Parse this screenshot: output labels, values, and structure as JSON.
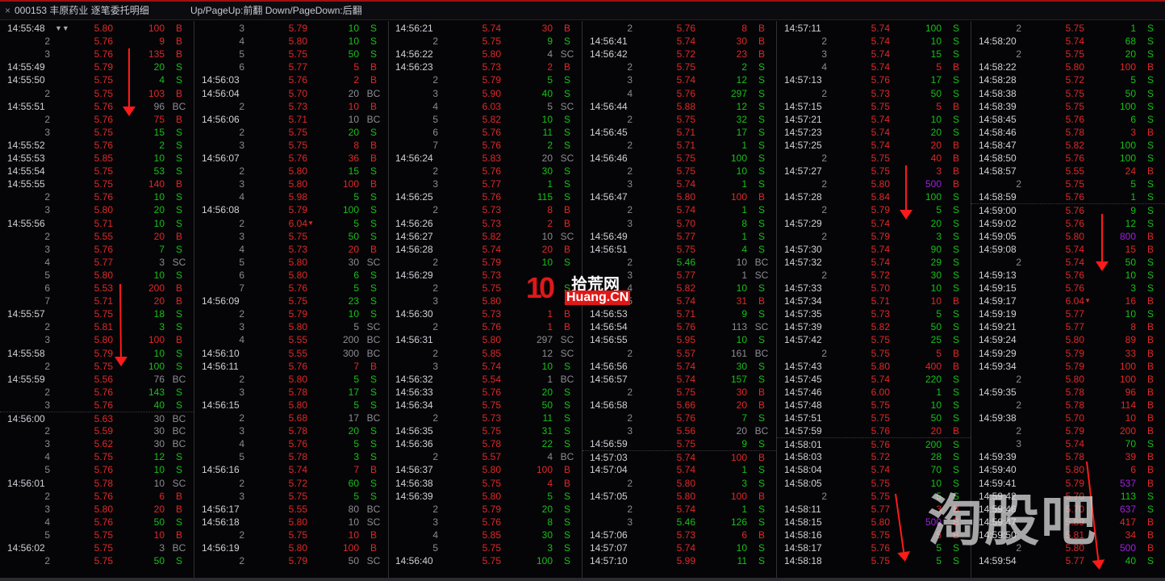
{
  "header": {
    "close_label": "×",
    "title": "000153 丰原药业 逐笔委托明细",
    "hint": "Up/PageUp:前翻 Down/PageDown:后翻",
    "filter_icons": "▼▼"
  },
  "colors": {
    "up": "#e02828",
    "down": "#18c018",
    "cancel": "#8c8c94",
    "large": "#a020e0"
  },
  "watermarks": {
    "logo1_num": "10",
    "logo1_cn": "拾荒网",
    "logo1_en": "Huang.CN",
    "logo2": "淘股吧"
  },
  "columns": [
    [
      [
        "14:55:48",
        "5.80",
        "100",
        "B"
      ],
      [
        "2",
        "5.76",
        "9",
        "B"
      ],
      [
        "3",
        "5.76",
        "135",
        "B"
      ],
      [
        "14:55:49",
        "5.79",
        "20",
        "S"
      ],
      [
        "14:55:50",
        "5.75",
        "4",
        "S"
      ],
      [
        "2",
        "5.75",
        "103",
        "B"
      ],
      [
        "14:55:51",
        "5.76",
        "96",
        "BC"
      ],
      [
        "2",
        "5.76",
        "75",
        "B"
      ],
      [
        "3",
        "5.75",
        "15",
        "S"
      ],
      [
        "14:55:52",
        "5.76",
        "2",
        "S"
      ],
      [
        "14:55:53",
        "5.85",
        "10",
        "S"
      ],
      [
        "14:55:54",
        "5.75",
        "53",
        "S"
      ],
      [
        "14:55:55",
        "5.75",
        "140",
        "B"
      ],
      [
        "2",
        "5.76",
        "10",
        "S"
      ],
      [
        "3",
        "5.80",
        "20",
        "S"
      ],
      [
        "14:55:56",
        "5.71",
        "10",
        "S"
      ],
      [
        "2",
        "5.55",
        "20",
        "B"
      ],
      [
        "3",
        "5.76",
        "7",
        "S"
      ],
      [
        "4",
        "5.77",
        "3",
        "SC"
      ],
      [
        "5",
        "5.80",
        "10",
        "S"
      ],
      [
        "6",
        "5.53",
        "200",
        "B"
      ],
      [
        "7",
        "5.71",
        "20",
        "B"
      ],
      [
        "14:55:57",
        "5.75",
        "18",
        "S"
      ],
      [
        "2",
        "5.81",
        "3",
        "S"
      ],
      [
        "3",
        "5.80",
        "100",
        "B"
      ],
      [
        "14:55:58",
        "5.79",
        "10",
        "S"
      ],
      [
        "2",
        "5.75",
        "100",
        "S"
      ],
      [
        "14:55:59",
        "5.56",
        "76",
        "BC"
      ],
      [
        "2",
        "5.76",
        "143",
        "S"
      ],
      [
        "3",
        "5.76",
        "40",
        "S"
      ],
      [
        "14:56:00",
        "5.63",
        "30",
        "BC"
      ],
      [
        "2",
        "5.59",
        "30",
        "BC"
      ],
      [
        "3",
        "5.62",
        "30",
        "BC"
      ],
      [
        "4",
        "5.75",
        "12",
        "S"
      ],
      [
        "5",
        "5.76",
        "10",
        "S"
      ],
      [
        "14:56:01",
        "5.78",
        "10",
        "SC"
      ],
      [
        "2",
        "5.76",
        "6",
        "B"
      ],
      [
        "3",
        "5.80",
        "20",
        "B"
      ],
      [
        "4",
        "5.76",
        "50",
        "S"
      ],
      [
        "5",
        "5.75",
        "10",
        "B"
      ],
      [
        "14:56:02",
        "5.75",
        "3",
        "BC"
      ],
      [
        "2",
        "5.75",
        "50",
        "S"
      ]
    ],
    [
      [
        "3",
        "5.79",
        "10",
        "S"
      ],
      [
        "4",
        "5.80",
        "10",
        "S"
      ],
      [
        "5",
        "5.75",
        "50",
        "S"
      ],
      [
        "6",
        "5.77",
        "5",
        "B"
      ],
      [
        "14:56:03",
        "5.76",
        "2",
        "B"
      ],
      [
        "14:56:04",
        "5.70",
        "20",
        "BC"
      ],
      [
        "2",
        "5.73",
        "10",
        "B"
      ],
      [
        "14:56:06",
        "5.71",
        "10",
        "BC"
      ],
      [
        "2",
        "5.75",
        "20",
        "S"
      ],
      [
        "3",
        "5.75",
        "8",
        "B"
      ],
      [
        "14:56:07",
        "5.76",
        "36",
        "B"
      ],
      [
        "2",
        "5.80",
        "15",
        "S"
      ],
      [
        "3",
        "5.80",
        "100",
        "B"
      ],
      [
        "4",
        "5.98",
        "5",
        "S"
      ],
      [
        "14:56:08",
        "5.79",
        "100",
        "S"
      ],
      [
        "2",
        "6.04",
        "5",
        "S"
      ],
      [
        "3",
        "5.75",
        "50",
        "S"
      ],
      [
        "4",
        "5.73",
        "20",
        "B"
      ],
      [
        "5",
        "5.80",
        "30",
        "SC"
      ],
      [
        "6",
        "5.80",
        "6",
        "S"
      ],
      [
        "7",
        "5.76",
        "5",
        "S"
      ],
      [
        "14:56:09",
        "5.75",
        "23",
        "S"
      ],
      [
        "2",
        "5.79",
        "10",
        "S"
      ],
      [
        "3",
        "5.80",
        "5",
        "SC"
      ],
      [
        "4",
        "5.55",
        "200",
        "BC"
      ],
      [
        "14:56:10",
        "5.55",
        "300",
        "BC"
      ],
      [
        "14:56:11",
        "5.76",
        "7",
        "B"
      ],
      [
        "2",
        "5.80",
        "5",
        "S"
      ],
      [
        "3",
        "5.78",
        "17",
        "S"
      ],
      [
        "14:56:15",
        "5.80",
        "5",
        "S"
      ],
      [
        "2",
        "5.68",
        "17",
        "BC"
      ],
      [
        "3",
        "5.78",
        "20",
        "S"
      ],
      [
        "4",
        "5.76",
        "5",
        "S"
      ],
      [
        "5",
        "5.78",
        "3",
        "S"
      ],
      [
        "14:56:16",
        "5.74",
        "7",
        "B"
      ],
      [
        "2",
        "5.72",
        "60",
        "S"
      ],
      [
        "3",
        "5.75",
        "5",
        "S"
      ],
      [
        "14:56:17",
        "5.55",
        "80",
        "BC"
      ],
      [
        "14:56:18",
        "5.80",
        "10",
        "SC"
      ],
      [
        "2",
        "5.75",
        "10",
        "B"
      ],
      [
        "14:56:19",
        "5.80",
        "100",
        "B"
      ],
      [
        "2",
        "5.79",
        "50",
        "SC"
      ]
    ],
    [
      [
        "14:56:21",
        "5.74",
        "30",
        "B"
      ],
      [
        "2",
        "5.75",
        "9",
        "S"
      ],
      [
        "14:56:22",
        "5.80",
        "4",
        "SC"
      ],
      [
        "14:56:23",
        "5.73",
        "2",
        "B"
      ],
      [
        "2",
        "5.79",
        "5",
        "S"
      ],
      [
        "3",
        "5.90",
        "40",
        "S"
      ],
      [
        "4",
        "6.03",
        "5",
        "SC"
      ],
      [
        "5",
        "5.82",
        "10",
        "S"
      ],
      [
        "6",
        "5.76",
        "11",
        "S"
      ],
      [
        "7",
        "5.76",
        "2",
        "S"
      ],
      [
        "14:56:24",
        "5.83",
        "20",
        "SC"
      ],
      [
        "2",
        "5.76",
        "30",
        "S"
      ],
      [
        "3",
        "5.77",
        "1",
        "S"
      ],
      [
        "14:56:25",
        "5.76",
        "115",
        "S"
      ],
      [
        "2",
        "5.73",
        "8",
        "B"
      ],
      [
        "14:56:26",
        "5.73",
        "2",
        "B"
      ],
      [
        "14:56:27",
        "5.82",
        "10",
        "SC"
      ],
      [
        "14:56:28",
        "5.74",
        "20",
        "B"
      ],
      [
        "2",
        "5.79",
        "10",
        "S"
      ],
      [
        "14:56:29",
        "5.73",
        "",
        ""
      ],
      [
        "2",
        "5.75",
        "",
        "S"
      ],
      [
        "3",
        "5.80",
        "",
        "S"
      ],
      [
        "14:56:30",
        "5.73",
        "1",
        "B"
      ],
      [
        "2",
        "5.76",
        "1",
        "B"
      ],
      [
        "14:56:31",
        "5.80",
        "297",
        "SC"
      ],
      [
        "2",
        "5.85",
        "12",
        "SC"
      ],
      [
        "3",
        "5.74",
        "10",
        "S"
      ],
      [
        "14:56:32",
        "5.54",
        "1",
        "BC"
      ],
      [
        "14:56:33",
        "5.76",
        "20",
        "S"
      ],
      [
        "14:56:34",
        "5.75",
        "50",
        "S"
      ],
      [
        "2",
        "5.73",
        "11",
        "S"
      ],
      [
        "14:56:35",
        "5.75",
        "31",
        "S"
      ],
      [
        "14:56:36",
        "5.78",
        "22",
        "S"
      ],
      [
        "2",
        "5.57",
        "4",
        "BC"
      ],
      [
        "14:56:37",
        "5.80",
        "100",
        "B"
      ],
      [
        "14:56:38",
        "5.75",
        "4",
        "B"
      ],
      [
        "14:56:39",
        "5.80",
        "5",
        "S"
      ],
      [
        "2",
        "5.79",
        "20",
        "S"
      ],
      [
        "3",
        "5.76",
        "8",
        "S"
      ],
      [
        "4",
        "5.85",
        "30",
        "S"
      ],
      [
        "5",
        "5.75",
        "3",
        "S"
      ],
      [
        "14:56:40",
        "5.75",
        "100",
        "S"
      ]
    ],
    [
      [
        "2",
        "5.76",
        "8",
        "B"
      ],
      [
        "14:56:41",
        "5.74",
        "30",
        "B"
      ],
      [
        "14:56:42",
        "5.72",
        "23",
        "B"
      ],
      [
        "2",
        "5.75",
        "2",
        "S"
      ],
      [
        "3",
        "5.74",
        "12",
        "S"
      ],
      [
        "4",
        "5.76",
        "297",
        "S"
      ],
      [
        "14:56:44",
        "5.88",
        "12",
        "S"
      ],
      [
        "2",
        "5.75",
        "32",
        "S"
      ],
      [
        "14:56:45",
        "5.71",
        "17",
        "S"
      ],
      [
        "2",
        "5.71",
        "1",
        "S"
      ],
      [
        "14:56:46",
        "5.75",
        "100",
        "S"
      ],
      [
        "2",
        "5.75",
        "10",
        "S"
      ],
      [
        "3",
        "5.74",
        "1",
        "S"
      ],
      [
        "14:56:47",
        "5.80",
        "100",
        "B"
      ],
      [
        "2",
        "5.74",
        "1",
        "S"
      ],
      [
        "3",
        "5.70",
        "8",
        "S"
      ],
      [
        "14:56:49",
        "5.77",
        "1",
        "S"
      ],
      [
        "14:56:51",
        "5.75",
        "4",
        "S"
      ],
      [
        "2",
        "5.46",
        "10",
        "BC"
      ],
      [
        "3",
        "5.77",
        "1",
        "SC"
      ],
      [
        "4",
        "5.82",
        "10",
        "S"
      ],
      [
        "5",
        "5.74",
        "31",
        "B"
      ],
      [
        "14:56:53",
        "5.71",
        "9",
        "S"
      ],
      [
        "14:56:54",
        "5.76",
        "113",
        "SC"
      ],
      [
        "14:56:55",
        "5.95",
        "10",
        "S"
      ],
      [
        "2",
        "5.57",
        "161",
        "BC"
      ],
      [
        "14:56:56",
        "5.74",
        "30",
        "S"
      ],
      [
        "14:56:57",
        "5.74",
        "157",
        "S"
      ],
      [
        "2",
        "5.75",
        "30",
        "B"
      ],
      [
        "14:56:58",
        "5.66",
        "20",
        "B"
      ],
      [
        "2",
        "5.76",
        "7",
        "S"
      ],
      [
        "3",
        "5.56",
        "20",
        "BC"
      ],
      [
        "14:56:59",
        "5.75",
        "9",
        "S"
      ],
      [
        "14:57:03",
        "5.74",
        "100",
        "B"
      ],
      [
        "14:57:04",
        "5.74",
        "1",
        "S"
      ],
      [
        "2",
        "5.80",
        "3",
        "S"
      ],
      [
        "14:57:05",
        "5.80",
        "100",
        "B"
      ],
      [
        "2",
        "5.74",
        "1",
        "S"
      ],
      [
        "3",
        "5.46",
        "126",
        "S"
      ],
      [
        "14:57:06",
        "5.73",
        "6",
        "B"
      ],
      [
        "14:57:07",
        "5.74",
        "10",
        "S"
      ],
      [
        "14:57:10",
        "5.99",
        "11",
        "S"
      ]
    ],
    [
      [
        "14:57:11",
        "5.74",
        "100",
        "S"
      ],
      [
        "2",
        "5.74",
        "10",
        "S"
      ],
      [
        "3",
        "5.74",
        "15",
        "S"
      ],
      [
        "4",
        "5.74",
        "5",
        "B"
      ],
      [
        "14:57:13",
        "5.76",
        "17",
        "S"
      ],
      [
        "2",
        "5.73",
        "50",
        "S"
      ],
      [
        "14:57:15",
        "5.75",
        "5",
        "B"
      ],
      [
        "14:57:21",
        "5.74",
        "10",
        "S"
      ],
      [
        "14:57:23",
        "5.74",
        "20",
        "S"
      ],
      [
        "14:57:25",
        "5.74",
        "20",
        "B"
      ],
      [
        "2",
        "5.75",
        "40",
        "B"
      ],
      [
        "14:57:27",
        "5.75",
        "3",
        "B"
      ],
      [
        "2",
        "5.80",
        "500",
        "B"
      ],
      [
        "14:57:28",
        "5.84",
        "100",
        "S"
      ],
      [
        "2",
        "5.79",
        "5",
        "S"
      ],
      [
        "14:57:29",
        "5.74",
        "20",
        "S"
      ],
      [
        "2",
        "5.79",
        "3",
        "S"
      ],
      [
        "14:57:30",
        "5.74",
        "90",
        "S"
      ],
      [
        "14:57:32",
        "5.74",
        "29",
        "S"
      ],
      [
        "2",
        "5.72",
        "30",
        "S"
      ],
      [
        "14:57:33",
        "5.70",
        "10",
        "S"
      ],
      [
        "14:57:34",
        "5.71",
        "10",
        "B"
      ],
      [
        "14:57:35",
        "5.73",
        "5",
        "S"
      ],
      [
        "14:57:39",
        "5.82",
        "50",
        "S"
      ],
      [
        "14:57:42",
        "5.75",
        "25",
        "S"
      ],
      [
        "2",
        "5.75",
        "5",
        "B"
      ],
      [
        "14:57:43",
        "5.80",
        "400",
        "B"
      ],
      [
        "14:57:45",
        "5.74",
        "220",
        "S"
      ],
      [
        "14:57:46",
        "6.00",
        "1",
        "S"
      ],
      [
        "14:57:48",
        "5.75",
        "10",
        "S"
      ],
      [
        "14:57:51",
        "5.75",
        "50",
        "S"
      ],
      [
        "14:57:59",
        "5.76",
        "20",
        "B"
      ],
      [
        "14:58:01",
        "5.76",
        "200",
        "S"
      ],
      [
        "14:58:03",
        "5.72",
        "28",
        "S"
      ],
      [
        "14:58:04",
        "5.74",
        "70",
        "S"
      ],
      [
        "14:58:05",
        "5.75",
        "10",
        "S"
      ],
      [
        "2",
        "5.75",
        "5",
        "S"
      ],
      [
        "14:58:11",
        "5.77",
        "3",
        "B"
      ],
      [
        "14:58:15",
        "5.80",
        "500",
        "B"
      ],
      [
        "14:58:16",
        "5.75",
        "5",
        "B"
      ],
      [
        "14:58:17",
        "5.76",
        "5",
        "S"
      ],
      [
        "14:58:18",
        "5.75",
        "5",
        "S"
      ]
    ],
    [
      [
        "2",
        "5.75",
        "1",
        "S"
      ],
      [
        "14:58:20",
        "5.74",
        "68",
        "S"
      ],
      [
        "2",
        "5.75",
        "20",
        "S"
      ],
      [
        "14:58:22",
        "5.80",
        "100",
        "B"
      ],
      [
        "14:58:28",
        "5.72",
        "5",
        "S"
      ],
      [
        "14:58:38",
        "5.75",
        "50",
        "S"
      ],
      [
        "14:58:39",
        "5.75",
        "100",
        "S"
      ],
      [
        "14:58:45",
        "5.76",
        "6",
        "S"
      ],
      [
        "14:58:46",
        "5.78",
        "3",
        "B"
      ],
      [
        "14:58:47",
        "5.82",
        "100",
        "S"
      ],
      [
        "14:58:50",
        "5.76",
        "100",
        "S"
      ],
      [
        "14:58:57",
        "5.55",
        "24",
        "B"
      ],
      [
        "2",
        "5.75",
        "5",
        "S"
      ],
      [
        "14:58:59",
        "5.76",
        "1",
        "S"
      ],
      [
        "14:59:00",
        "5.76",
        "9",
        "S"
      ],
      [
        "14:59:02",
        "5.76",
        "12",
        "S"
      ],
      [
        "14:59:05",
        "5.80",
        "800",
        "B"
      ],
      [
        "14:59:08",
        "5.74",
        "15",
        "B"
      ],
      [
        "2",
        "5.74",
        "50",
        "S"
      ],
      [
        "14:59:13",
        "5.76",
        "10",
        "S"
      ],
      [
        "14:59:15",
        "5.76",
        "3",
        "S"
      ],
      [
        "14:59:17",
        "6.04",
        "16",
        "B"
      ],
      [
        "14:59:19",
        "5.77",
        "10",
        "S"
      ],
      [
        "14:59:21",
        "5.77",
        "8",
        "B"
      ],
      [
        "14:59:24",
        "5.80",
        "89",
        "B"
      ],
      [
        "14:59:29",
        "5.79",
        "33",
        "B"
      ],
      [
        "14:59:34",
        "5.79",
        "100",
        "B"
      ],
      [
        "2",
        "5.80",
        "100",
        "B"
      ],
      [
        "14:59:35",
        "5.78",
        "96",
        "B"
      ],
      [
        "2",
        "5.78",
        "114",
        "B"
      ],
      [
        "14:59:38",
        "5.70",
        "10",
        "B"
      ],
      [
        "2",
        "5.79",
        "200",
        "B"
      ],
      [
        "3",
        "5.74",
        "70",
        "S"
      ],
      [
        "14:59:39",
        "5.78",
        "39",
        "B"
      ],
      [
        "14:59:40",
        "5.80",
        "6",
        "B"
      ],
      [
        "14:59:41",
        "5.79",
        "537",
        "B"
      ],
      [
        "14:59:42",
        "5.70",
        "113",
        "S"
      ],
      [
        "14:59:46",
        "5.70",
        "637",
        "S"
      ],
      [
        "14:59:47",
        "5.89",
        "417",
        "B"
      ],
      [
        "14:59:50",
        "5.81",
        "34",
        "B"
      ],
      [
        "2",
        "5.80",
        "500",
        "B"
      ],
      [
        "14:59:54",
        "5.77",
        "40",
        "S"
      ]
    ]
  ]
}
